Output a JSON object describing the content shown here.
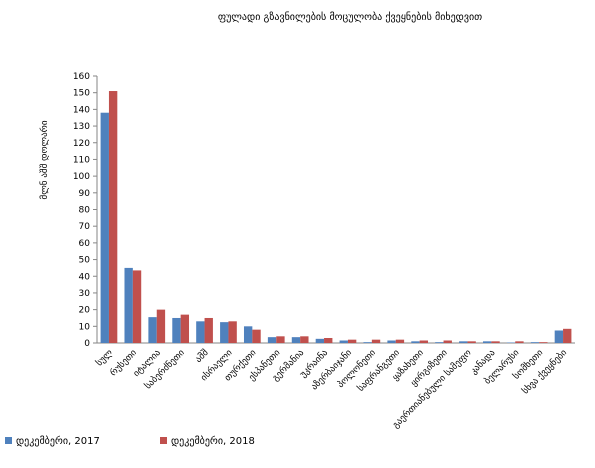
{
  "chart_data": {
    "type": "bar",
    "title": "ფულადი გზავნილების მოცულობა ქვეყნების მიხედვით",
    "y_label": "მლნ აშშ დოლარი",
    "categories": [
      "სულ",
      "რუსეთი",
      "იტალია",
      "საბერძნეთი",
      "აშშ",
      "ისრაელი",
      "თურქეთი",
      "ესპანეთი",
      "გერმანია",
      "უკრაინა",
      "აზერბაიჯანი",
      "პოლონეთი",
      "საფრანგეთი",
      "ყაზახეთი",
      "ყირგიზეთი",
      "გაერთიანებული სამეფო",
      "კანადა",
      "ბელარუსი",
      "სომხეთი",
      "სხვა ქვეყნები"
    ],
    "series": [
      {
        "name": "დეკემბერი, 2017",
        "color": "#4f81bd",
        "values": [
          138,
          45,
          15.5,
          15,
          13,
          12.5,
          10,
          3.5,
          3.5,
          2.5,
          1.5,
          0.5,
          1.5,
          1,
          0.5,
          1,
          1,
          0.3,
          0.5,
          7.5
        ]
      },
      {
        "name": "დეკემბერი, 2018",
        "color": "#c0504d",
        "values": [
          151,
          43.5,
          20,
          17,
          15,
          13,
          8,
          4,
          4,
          3,
          2,
          2,
          2,
          1.5,
          1.5,
          1,
          1,
          1,
          0.5,
          8.5
        ]
      }
    ],
    "ylim": [
      0,
      160
    ],
    "yticks": [
      0,
      10,
      20,
      30,
      40,
      50,
      60,
      70,
      80,
      90,
      100,
      110,
      120,
      130,
      140,
      150,
      160
    ],
    "legend": "bottom"
  }
}
